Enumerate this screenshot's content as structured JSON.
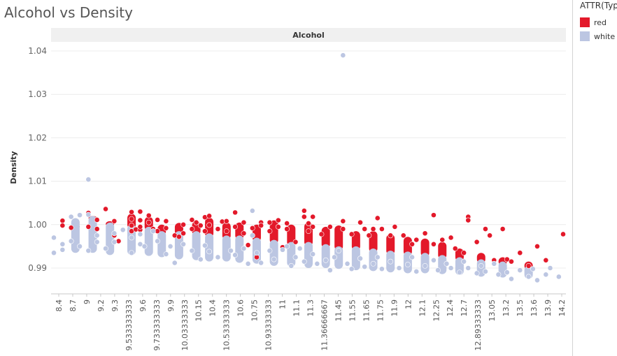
{
  "title": "Alcohol vs Density",
  "legend": {
    "title": "ATTR(Typ",
    "items": [
      {
        "label": "red",
        "color": "#e3192a"
      },
      {
        "label": "white",
        "color": "#bcc6e2"
      }
    ]
  },
  "chart_data": {
    "type": "scatter",
    "title": "Alcohol vs Density",
    "panel_header": "Alcohol",
    "ylabel": "Density",
    "ylim": [
      0.985,
      1.042
    ],
    "yticks": [
      0.99,
      1.0,
      1.01,
      1.02,
      1.03,
      1.04
    ],
    "ytick_labels": [
      "0.99",
      "1.00",
      "1.01",
      "1.02",
      "1.03",
      "1.04"
    ],
    "x_tick_labels": [
      "8.4",
      "8.7",
      "9",
      "9.2",
      "9.3",
      "9.533333333",
      "9.6",
      "9.733333333",
      "9.9",
      "10.03333333",
      "10.15",
      "10.4",
      "10.53333333",
      "10.6",
      "10.75",
      "10.93333333",
      "11",
      "11.1",
      "11.3",
      "11.36666667",
      "11.45",
      "11.55",
      "11.65",
      "11.75",
      "11.9",
      "12",
      "12.1",
      "12.25",
      "12.4",
      "12.7",
      "12.89333333",
      "13.05",
      "13.2",
      "13.5",
      "13.6",
      "13.9",
      "14.2"
    ],
    "grid": true,
    "legend_position": "right",
    "series": [
      {
        "name": "red",
        "color": "#e3192a",
        "points": [
          [
            8.4,
            1.0009
          ],
          [
            8.4,
            0.9998
          ],
          [
            8.5,
            0.9993
          ],
          [
            8.7,
            1.0027
          ],
          [
            8.7,
            0.9995
          ],
          [
            8.8,
            1.0011
          ],
          [
            8.8,
            0.999
          ],
          [
            8.9,
            1.0036
          ],
          [
            9.0,
            1.0008
          ],
          [
            9.0,
            0.9975
          ],
          [
            9.05,
            0.9962
          ],
          [
            9.2,
            1.0029
          ],
          [
            9.2,
            1.0013
          ],
          [
            9.2,
            0.9998
          ],
          [
            9.2,
            0.9985
          ],
          [
            9.25,
            0.9989
          ],
          [
            9.3,
            0.9988
          ],
          [
            9.3,
            1.003
          ],
          [
            9.3,
            1.001
          ],
          [
            9.3,
            0.9995
          ],
          [
            9.4,
            1.0021
          ],
          [
            9.4,
            1.0005
          ],
          [
            9.45,
            0.999
          ],
          [
            9.5,
            1.0011
          ],
          [
            9.5,
            0.9985
          ],
          [
            9.6,
            1.0008
          ],
          [
            9.6,
            0.9992
          ],
          [
            9.7,
            0.9975
          ],
          [
            9.75,
            0.9972
          ],
          [
            9.8,
            1.0
          ],
          [
            9.8,
            0.998
          ],
          [
            9.9,
            1.0011
          ],
          [
            9.9,
            0.999
          ],
          [
            9.95,
            1.0005
          ],
          [
            10.0,
            0.9998
          ],
          [
            10.05,
            1.0017
          ],
          [
            10.05,
            0.9985
          ],
          [
            10.1,
            1.002
          ],
          [
            10.1,
            0.9999
          ],
          [
            10.2,
            0.999
          ],
          [
            10.25,
            1.0007
          ],
          [
            10.3,
            1.0008
          ],
          [
            10.3,
            0.9985
          ],
          [
            10.4,
            1.0028
          ],
          [
            10.4,
            0.9995
          ],
          [
            10.5,
            1.0005
          ],
          [
            10.5,
            0.998
          ],
          [
            10.55,
            0.9953
          ],
          [
            10.6,
            0.9992
          ],
          [
            10.65,
            0.9925
          ],
          [
            10.7,
            1.0005
          ],
          [
            10.7,
            0.9998
          ],
          [
            10.8,
            1.0005
          ],
          [
            10.8,
            0.9985
          ],
          [
            10.9,
            1.001
          ],
          [
            10.9,
            0.9995
          ],
          [
            10.95,
            0.9948
          ],
          [
            11.0,
            1.0003
          ],
          [
            11.0,
            0.999
          ],
          [
            11.1,
            0.996
          ],
          [
            11.2,
            1.0032
          ],
          [
            11.2,
            1.0018
          ],
          [
            11.25,
            1.0003
          ],
          [
            11.25,
            0.9985
          ],
          [
            11.3,
            1.0018
          ],
          [
            11.3,
            0.9995
          ],
          [
            11.4,
            0.9978
          ],
          [
            11.5,
            0.9995
          ],
          [
            11.65,
            1.0008
          ],
          [
            11.65,
            0.999
          ],
          [
            11.75,
            0.9978
          ],
          [
            11.85,
            1.0005
          ],
          [
            11.9,
            0.999
          ],
          [
            11.95,
            0.9975
          ],
          [
            12.0,
            0.999
          ],
          [
            12.05,
            1.0015
          ],
          [
            12.1,
            0.999
          ],
          [
            12.2,
            0.9975
          ],
          [
            12.25,
            0.9995
          ],
          [
            12.35,
            0.9975
          ],
          [
            12.45,
            0.9955
          ],
          [
            12.5,
            0.9965
          ],
          [
            12.6,
            0.998
          ],
          [
            12.7,
            1.0022
          ],
          [
            12.7,
            0.9955
          ],
          [
            12.8,
            0.9965
          ],
          [
            12.9,
            0.997
          ],
          [
            12.95,
            0.9945
          ],
          [
            13.05,
            0.9935
          ],
          [
            13.1,
            1.0018
          ],
          [
            13.1,
            1.001
          ],
          [
            13.2,
            0.996
          ],
          [
            13.3,
            0.999
          ],
          [
            13.35,
            0.9975
          ],
          [
            13.4,
            0.9918
          ],
          [
            13.5,
            0.999
          ],
          [
            13.55,
            0.992
          ],
          [
            13.6,
            0.9915
          ],
          [
            13.7,
            0.9935
          ],
          [
            13.8,
            0.9905
          ],
          [
            13.9,
            0.995
          ],
          [
            14.0,
            0.9918
          ],
          [
            14.2,
            0.9978
          ]
        ]
      },
      {
        "name": "white",
        "color": "#bcc6e2",
        "points": [
          [
            8.3,
            0.997
          ],
          [
            8.3,
            0.9935
          ],
          [
            8.4,
            0.9942
          ],
          [
            8.4,
            0.9955
          ],
          [
            8.5,
            1.0018
          ],
          [
            8.5,
            0.9962
          ],
          [
            8.6,
            1.0022
          ],
          [
            8.6,
            0.995
          ],
          [
            8.7,
            1.0104
          ],
          [
            8.7,
            1.0023
          ],
          [
            8.7,
            0.994
          ],
          [
            8.8,
            0.996
          ],
          [
            8.8,
            0.9975
          ],
          [
            8.9,
            0.9945
          ],
          [
            9.0,
            0.998
          ],
          [
            9.0,
            0.996
          ],
          [
            9.1,
            0.9988
          ],
          [
            9.2,
            0.997
          ],
          [
            9.2,
            0.9935
          ],
          [
            9.3,
            0.9955
          ],
          [
            9.3,
            0.9978
          ],
          [
            9.35,
            0.995
          ],
          [
            9.45,
            0.9985
          ],
          [
            9.5,
            0.9962
          ],
          [
            9.6,
            0.9932
          ],
          [
            9.65,
            0.995
          ],
          [
            9.7,
            0.9912
          ],
          [
            9.8,
            0.9955
          ],
          [
            9.9,
            0.994
          ],
          [
            10.0,
            0.992
          ],
          [
            10.05,
            0.9952
          ],
          [
            10.1,
            0.9938
          ],
          [
            10.2,
            0.9925
          ],
          [
            10.35,
            0.994
          ],
          [
            10.4,
            0.993
          ],
          [
            10.5,
            0.9945
          ],
          [
            10.55,
            0.991
          ],
          [
            10.6,
            1.0032
          ],
          [
            10.6,
            0.9975
          ],
          [
            10.65,
            0.9935
          ],
          [
            10.7,
            0.9912
          ],
          [
            10.8,
            0.994
          ],
          [
            10.85,
            0.992
          ],
          [
            10.95,
            0.9942
          ],
          [
            11.0,
            0.995
          ],
          [
            11.05,
            0.9905
          ],
          [
            11.1,
            0.9925
          ],
          [
            11.15,
            0.9945
          ],
          [
            11.2,
            0.9915
          ],
          [
            11.3,
            0.9932
          ],
          [
            11.35,
            0.991
          ],
          [
            11.45,
            0.9918
          ],
          [
            11.5,
            0.9895
          ],
          [
            11.55,
            0.9925
          ],
          [
            11.6,
            0.994
          ],
          [
            11.65,
            1.039
          ],
          [
            11.7,
            0.991
          ],
          [
            11.75,
            0.9898
          ],
          [
            11.85,
            0.9922
          ],
          [
            11.9,
            0.9903
          ],
          [
            12.0,
            0.991
          ],
          [
            12.05,
            0.9925
          ],
          [
            12.1,
            0.9898
          ],
          [
            12.2,
            0.9915
          ],
          [
            12.3,
            0.99
          ],
          [
            12.4,
            0.9908
          ],
          [
            12.45,
            0.9925
          ],
          [
            12.5,
            0.9892
          ],
          [
            12.6,
            0.9905
          ],
          [
            12.7,
            0.9918
          ],
          [
            12.75,
            0.9895
          ],
          [
            12.85,
            0.991
          ],
          [
            12.9,
            0.99
          ],
          [
            13.0,
            0.989
          ],
          [
            13.05,
            0.9915
          ],
          [
            13.1,
            0.99
          ],
          [
            13.2,
            0.9888
          ],
          [
            13.25,
            0.9905
          ],
          [
            13.3,
            0.9892
          ],
          [
            13.4,
            0.991
          ],
          [
            13.45,
            0.9885
          ],
          [
            13.55,
            0.989
          ],
          [
            13.6,
            0.9875
          ],
          [
            13.7,
            0.9895
          ],
          [
            13.8,
            0.988
          ],
          [
            13.85,
            0.9898
          ],
          [
            13.9,
            0.9872
          ],
          [
            14.0,
            0.9885
          ],
          [
            14.05,
            0.99
          ],
          [
            14.15,
            0.988
          ]
        ]
      }
    ],
    "column_bands": [
      {
        "x": 8.55,
        "red_top": 1.0,
        "white_top": 1.0015,
        "bottom": 0.9935
      },
      {
        "x": 8.75,
        "red_top": 1.002,
        "white_top": 1.002,
        "bottom": 0.9935
      },
      {
        "x": 8.95,
        "red_top": 1.0008,
        "white_top": 1.0005,
        "bottom": 0.993
      },
      {
        "x": 9.2,
        "red_top": 1.0025,
        "white_top": 1.0,
        "bottom": 0.993
      },
      {
        "x": 9.4,
        "red_top": 1.0018,
        "white_top": 0.9995,
        "bottom": 0.9928
      },
      {
        "x": 9.55,
        "red_top": 1.0,
        "white_top": 0.9985,
        "bottom": 0.9925
      },
      {
        "x": 9.75,
        "red_top": 1.0004,
        "white_top": 0.9985,
        "bottom": 0.992
      },
      {
        "x": 9.95,
        "red_top": 1.0008,
        "white_top": 0.9985,
        "bottom": 0.9918
      },
      {
        "x": 10.1,
        "red_top": 1.0016,
        "white_top": 0.998,
        "bottom": 0.9915
      },
      {
        "x": 10.3,
        "red_top": 1.0005,
        "white_top": 0.9975,
        "bottom": 0.9915
      },
      {
        "x": 10.45,
        "red_top": 1.0005,
        "white_top": 0.9975,
        "bottom": 0.9912
      },
      {
        "x": 10.65,
        "red_top": 1.0,
        "white_top": 0.997,
        "bottom": 0.991
      },
      {
        "x": 10.85,
        "red_top": 1.001,
        "white_top": 0.9965,
        "bottom": 0.9905
      },
      {
        "x": 11.05,
        "red_top": 1.0,
        "white_top": 0.996,
        "bottom": 0.9903
      },
      {
        "x": 11.25,
        "red_top": 1.0005,
        "white_top": 0.996,
        "bottom": 0.99
      },
      {
        "x": 11.45,
        "red_top": 0.9995,
        "white_top": 0.9955,
        "bottom": 0.99
      },
      {
        "x": 11.6,
        "red_top": 0.9998,
        "white_top": 0.995,
        "bottom": 0.9898
      },
      {
        "x": 11.8,
        "red_top": 0.9985,
        "white_top": 0.995,
        "bottom": 0.9895
      },
      {
        "x": 12.0,
        "red_top": 0.9985,
        "white_top": 0.9945,
        "bottom": 0.9893
      },
      {
        "x": 12.2,
        "red_top": 0.9978,
        "white_top": 0.994,
        "bottom": 0.989
      },
      {
        "x": 12.4,
        "red_top": 0.9972,
        "white_top": 0.9938,
        "bottom": 0.9888
      },
      {
        "x": 12.6,
        "red_top": 0.9968,
        "white_top": 0.9935,
        "bottom": 0.9888
      },
      {
        "x": 12.8,
        "red_top": 0.996,
        "white_top": 0.993,
        "bottom": 0.9886
      },
      {
        "x": 13.0,
        "red_top": 0.9945,
        "white_top": 0.9925,
        "bottom": 0.9884
      },
      {
        "x": 13.25,
        "red_top": 0.9935,
        "white_top": 0.992,
        "bottom": 0.988
      },
      {
        "x": 13.5,
        "red_top": 0.9925,
        "white_top": 0.9915,
        "bottom": 0.9878
      },
      {
        "x": 13.8,
        "red_top": 0.9915,
        "white_top": 0.9905,
        "bottom": 0.9875
      }
    ]
  }
}
